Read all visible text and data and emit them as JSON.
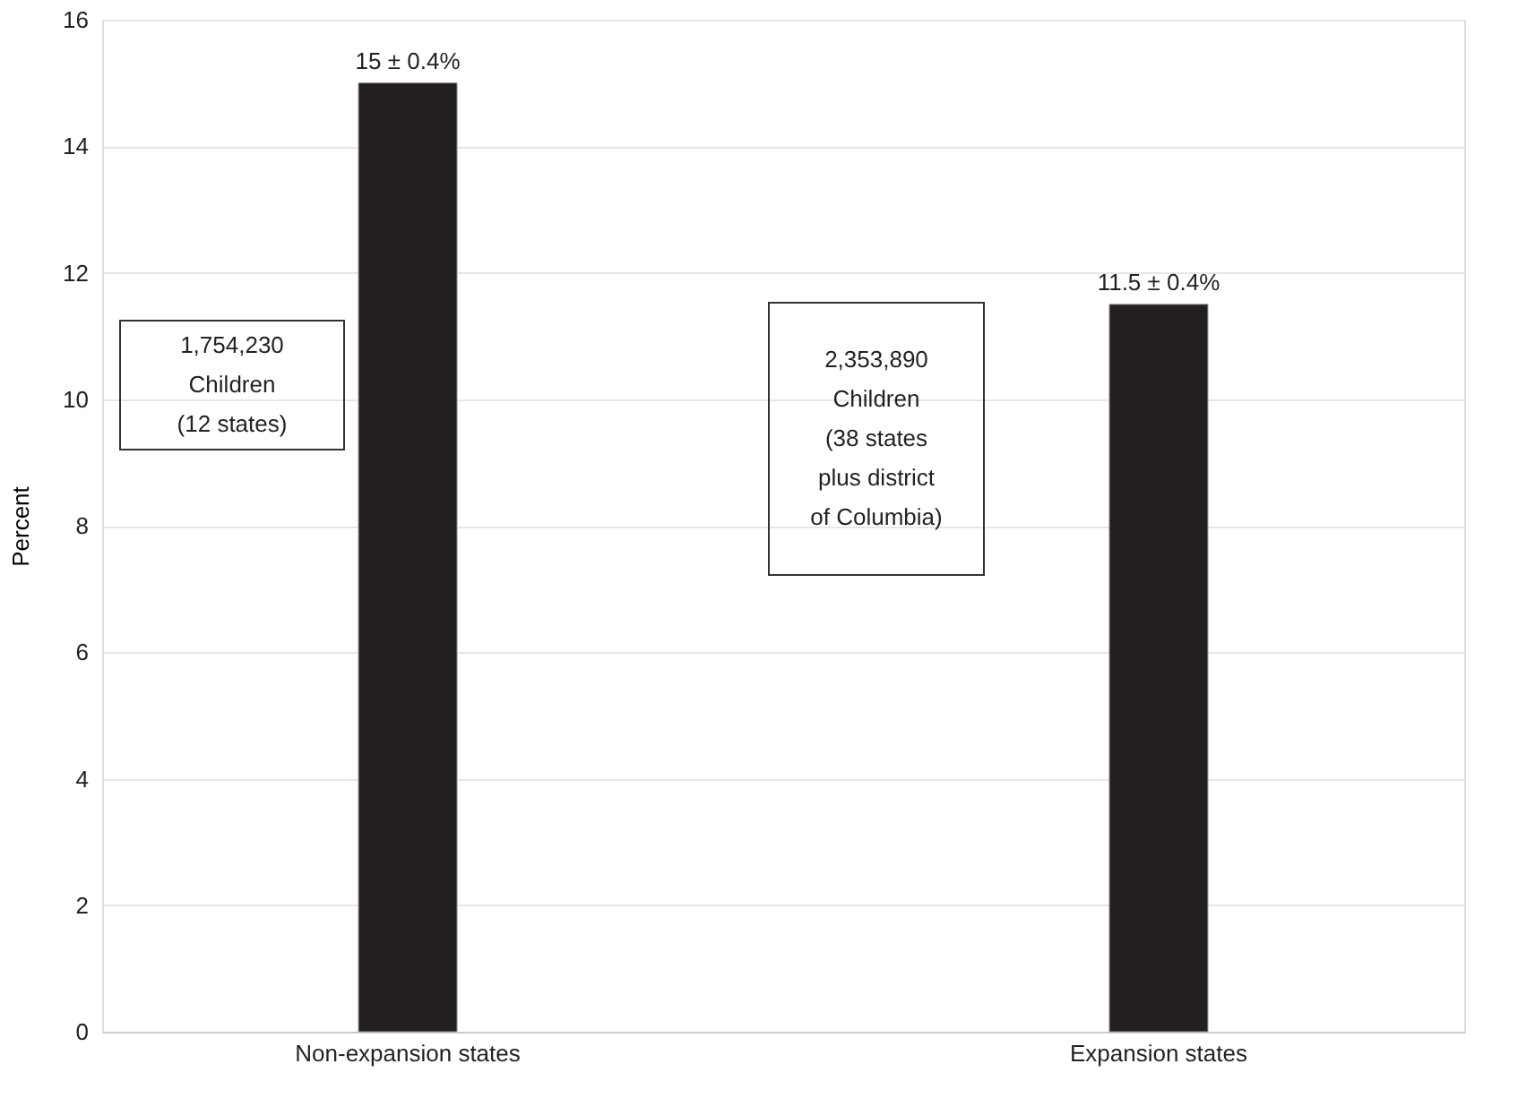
{
  "chart_data": {
    "type": "bar",
    "ylabel": "Percent",
    "categories": [
      "Non-expansion states",
      "Expansion states"
    ],
    "values": [
      15,
      11.5
    ],
    "color": "#231f20",
    "value_labels": [
      "15 ± 0.4%",
      "11.5 ± 0.4%"
    ],
    "annotations": [
      "1,754,230\nChildren\n(12 states)",
      "2,353,890\nChildren\n(38 states\nplus district\nof Columbia)"
    ],
    "ylim": [
      0,
      16
    ],
    "yticks": [
      0,
      2,
      4,
      6,
      8,
      10,
      12,
      14,
      16
    ],
    "grid": "y"
  }
}
